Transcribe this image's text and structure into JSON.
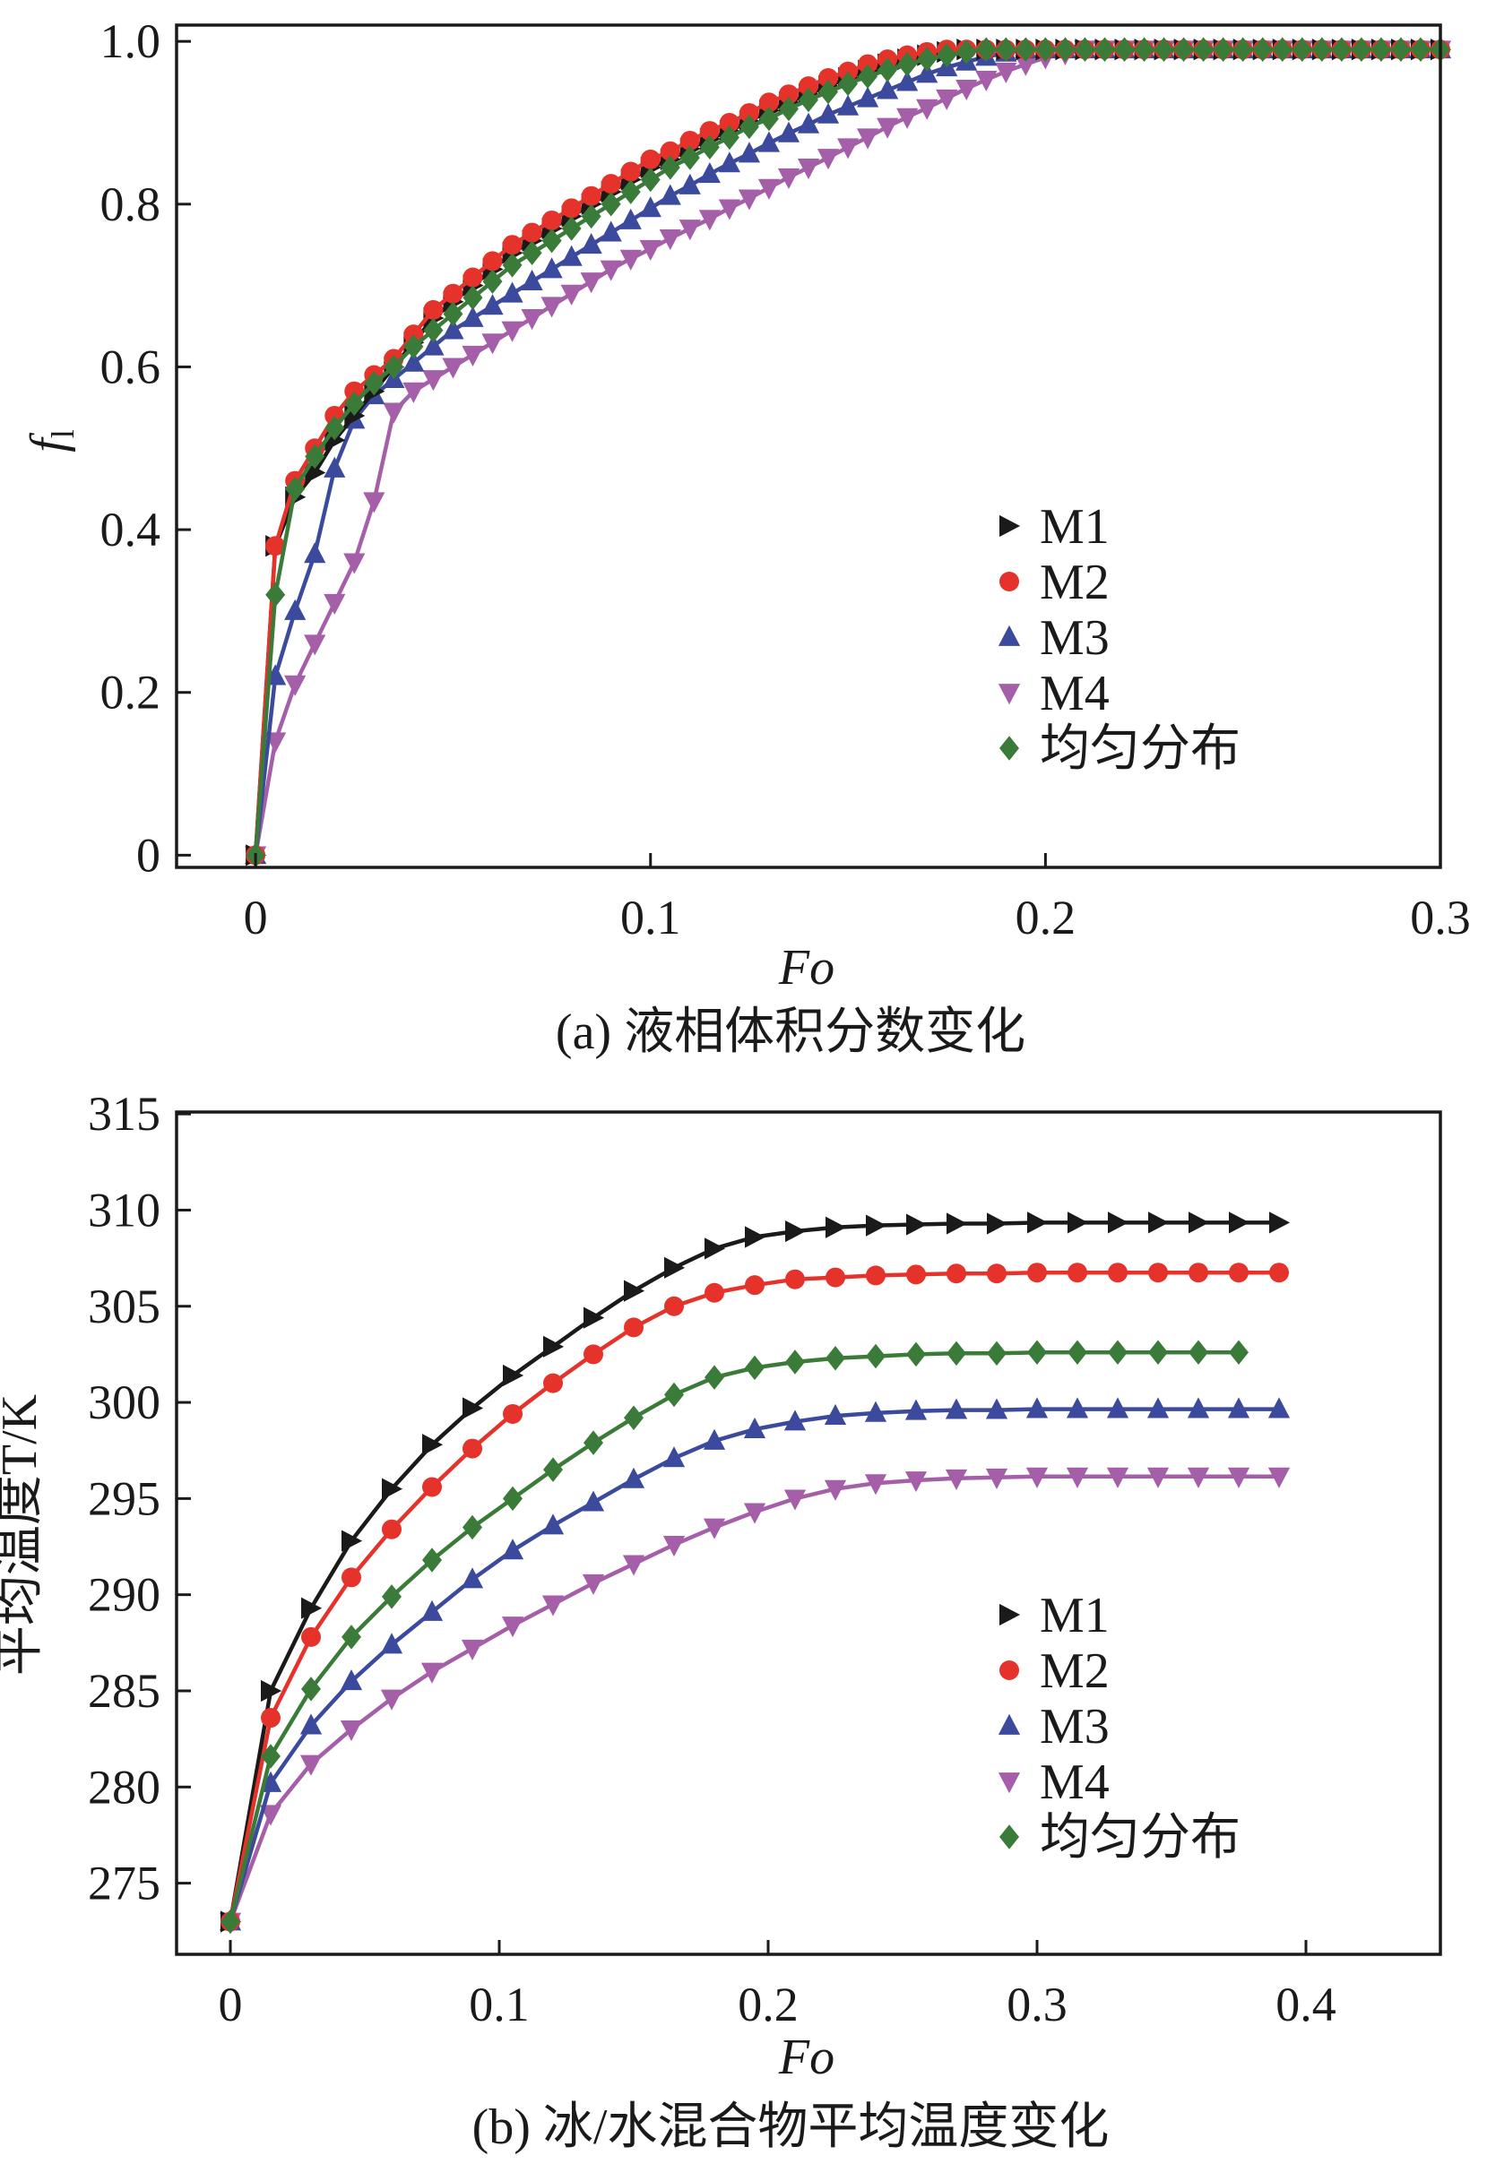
{
  "chart_data": [
    {
      "type": "line",
      "panel": "a",
      "caption": "(a) 液相体积分数变化",
      "xlabel": "Fo",
      "ylabel": "f",
      "ylabel_sub": "l",
      "xlim": [
        -0.02,
        0.3
      ],
      "ylim": [
        -0.015,
        1.02
      ],
      "xticks": [
        0,
        0.1,
        0.2,
        0.3
      ],
      "xtick_labels": [
        "0",
        "0.1",
        "0.2",
        "0.3"
      ],
      "yticks": [
        0,
        0.2,
        0.4,
        0.6,
        0.8,
        1.0
      ],
      "ytick_labels": [
        "0",
        "0.2",
        "0.4",
        "0.6",
        "0.8",
        "1.0"
      ],
      "legend_position": "center-right",
      "x_start": 0,
      "x_step": 0.005,
      "series": [
        {
          "name": "M4",
          "marker": "triangle-down",
          "color": "#a55ea8",
          "values": [
            0,
            0.14,
            0.21,
            0.26,
            0.31,
            0.36,
            0.435,
            0.545,
            0.57,
            0.585,
            0.6,
            0.615,
            0.63,
            0.645,
            0.66,
            0.675,
            0.69,
            0.705,
            0.72,
            0.733,
            0.745,
            0.758,
            0.77,
            0.782,
            0.795,
            0.807,
            0.82,
            0.833,
            0.845,
            0.857,
            0.87,
            0.882,
            0.895,
            0.907,
            0.918,
            0.93,
            0.942,
            0.953,
            0.963,
            0.972,
            0.98,
            0.985,
            0.99,
            0.99,
            0.99,
            0.99,
            0.99,
            0.99,
            0.99,
            0.99,
            0.99,
            0.99,
            0.99,
            0.99,
            0.99,
            0.99,
            0.99,
            0.99,
            0.99,
            0.99,
            0.99
          ]
        },
        {
          "name": "M3",
          "marker": "triangle-up",
          "color": "#3b4a9c",
          "values": [
            0,
            0.22,
            0.3,
            0.37,
            0.475,
            0.535,
            0.565,
            0.585,
            0.605,
            0.625,
            0.645,
            0.66,
            0.675,
            0.69,
            0.705,
            0.72,
            0.735,
            0.75,
            0.765,
            0.78,
            0.795,
            0.81,
            0.823,
            0.837,
            0.85,
            0.862,
            0.875,
            0.887,
            0.898,
            0.91,
            0.92,
            0.93,
            0.94,
            0.95,
            0.96,
            0.968,
            0.975,
            0.981,
            0.986,
            0.99,
            0.99,
            0.99,
            0.99,
            0.99,
            0.99,
            0.99,
            0.99,
            0.99,
            0.99,
            0.99,
            0.99,
            0.99,
            0.99,
            0.99,
            0.99,
            0.99,
            0.99,
            0.99,
            0.99,
            0.99,
            0.99
          ]
        },
        {
          "name": "M1",
          "marker": "triangle-right",
          "color": "#1a1a1a",
          "values": [
            0,
            0.38,
            0.44,
            0.47,
            0.51,
            0.54,
            0.57,
            0.6,
            0.63,
            0.66,
            0.68,
            0.7,
            0.72,
            0.74,
            0.755,
            0.77,
            0.785,
            0.8,
            0.815,
            0.83,
            0.845,
            0.855,
            0.868,
            0.88,
            0.89,
            0.902,
            0.915,
            0.925,
            0.935,
            0.945,
            0.955,
            0.964,
            0.972,
            0.978,
            0.983,
            0.987,
            0.99,
            0.99,
            0.99,
            0.99,
            0.99,
            0.99,
            0.99,
            0.99,
            0.99,
            0.99,
            0.99,
            0.99,
            0.99,
            0.99,
            0.99,
            0.99,
            0.99,
            0.99,
            0.99,
            0.99,
            0.99,
            0.99,
            0.99,
            0.99,
            0.99
          ]
        },
        {
          "name": "M2",
          "marker": "circle",
          "color": "#e5322b",
          "values": [
            0,
            0.38,
            0.46,
            0.5,
            0.54,
            0.57,
            0.59,
            0.61,
            0.64,
            0.67,
            0.69,
            0.71,
            0.73,
            0.75,
            0.765,
            0.78,
            0.795,
            0.81,
            0.825,
            0.84,
            0.855,
            0.865,
            0.878,
            0.89,
            0.9,
            0.912,
            0.925,
            0.935,
            0.945,
            0.955,
            0.963,
            0.972,
            0.978,
            0.983,
            0.987,
            0.99,
            0.99,
            0.99,
            0.99,
            0.99,
            0.99,
            0.99,
            0.99,
            0.99,
            0.99,
            0.99,
            0.99,
            0.99,
            0.99,
            0.99,
            0.99,
            0.99,
            0.99,
            0.99,
            0.99,
            0.99,
            0.99,
            0.99,
            0.99,
            0.99,
            0.99
          ]
        },
        {
          "name": "均匀分布",
          "marker": "diamond",
          "color": "#3b7b3a",
          "values": [
            0,
            0.32,
            0.45,
            0.49,
            0.525,
            0.555,
            0.58,
            0.6,
            0.625,
            0.645,
            0.665,
            0.685,
            0.705,
            0.725,
            0.74,
            0.755,
            0.77,
            0.785,
            0.8,
            0.815,
            0.83,
            0.845,
            0.857,
            0.87,
            0.882,
            0.895,
            0.905,
            0.917,
            0.928,
            0.938,
            0.948,
            0.957,
            0.965,
            0.972,
            0.978,
            0.983,
            0.987,
            0.99,
            0.99,
            0.99,
            0.99,
            0.99,
            0.99,
            0.99,
            0.99,
            0.99,
            0.99,
            0.99,
            0.99,
            0.99,
            0.99,
            0.99,
            0.99,
            0.99,
            0.99,
            0.99,
            0.99,
            0.99,
            0.99,
            0.99,
            0.99
          ]
        }
      ],
      "legend_order": [
        "M1",
        "M2",
        "M3",
        "M4",
        "均匀分布"
      ]
    },
    {
      "type": "line",
      "panel": "b",
      "caption": "(b) 冰/水混合物平均温度变化",
      "xlabel": "Fo",
      "ylabel": "平均温度T/K",
      "xlim": [
        -0.02,
        0.45
      ],
      "ylim": [
        271.3,
        315.1
      ],
      "xticks": [
        0,
        0.1,
        0.2,
        0.3,
        0.4
      ],
      "xtick_labels": [
        "0",
        "0.1",
        "0.2",
        "0.3",
        "0.4"
      ],
      "yticks": [
        275,
        280,
        285,
        290,
        295,
        300,
        305,
        310,
        315
      ],
      "ytick_labels": [
        "275",
        "280",
        "285",
        "290",
        "295",
        "300",
        "305",
        "310",
        "315"
      ],
      "legend_position": "lower-right",
      "x_start": 0,
      "x_step": 0.015,
      "series": [
        {
          "name": "M4",
          "marker": "triangle-down",
          "color": "#a55ea8",
          "values": [
            273,
            278.6,
            281.2,
            283.0,
            284.6,
            286.0,
            287.2,
            288.4,
            289.5,
            290.6,
            291.6,
            292.6,
            293.5,
            294.3,
            295.0,
            295.5,
            295.8,
            295.95,
            296.05,
            296.1,
            296.15,
            296.15,
            296.15,
            296.15,
            296.15,
            296.15,
            296.15
          ]
        },
        {
          "name": "M3",
          "marker": "triangle-up",
          "color": "#3b4a9c",
          "values": [
            273,
            280.2,
            283.2,
            285.5,
            287.4,
            289.1,
            290.8,
            292.3,
            293.6,
            294.8,
            296.0,
            297.1,
            298.0,
            298.6,
            299.0,
            299.3,
            299.45,
            299.55,
            299.6,
            299.6,
            299.65,
            299.65,
            299.65,
            299.65,
            299.65,
            299.65,
            299.65
          ]
        },
        {
          "name": "M1",
          "marker": "triangle-right",
          "color": "#1a1a1a",
          "values": [
            273,
            285.0,
            289.3,
            292.8,
            295.5,
            297.8,
            299.7,
            301.4,
            302.9,
            304.4,
            305.8,
            307.0,
            308.0,
            308.6,
            308.9,
            309.1,
            309.2,
            309.25,
            309.3,
            309.3,
            309.35,
            309.35,
            309.35,
            309.35,
            309.35,
            309.35,
            309.35
          ]
        },
        {
          "name": "M2",
          "marker": "circle",
          "color": "#e5322b",
          "values": [
            273,
            283.6,
            287.8,
            290.9,
            293.4,
            295.6,
            297.6,
            299.4,
            301.0,
            302.5,
            303.9,
            305.0,
            305.7,
            306.1,
            306.4,
            306.5,
            306.6,
            306.65,
            306.7,
            306.7,
            306.75,
            306.75,
            306.75,
            306.75,
            306.75,
            306.75,
            306.75
          ]
        },
        {
          "name": "均匀分布",
          "marker": "diamond",
          "color": "#3b7b3a",
          "values": [
            273,
            281.6,
            285.1,
            287.8,
            289.9,
            291.8,
            293.5,
            295.0,
            296.5,
            297.9,
            299.2,
            300.4,
            301.3,
            301.8,
            302.1,
            302.3,
            302.4,
            302.5,
            302.55,
            302.55,
            302.6,
            302.6,
            302.6,
            302.6,
            302.6,
            302.6
          ]
        }
      ],
      "legend_order": [
        "M1",
        "M2",
        "M3",
        "M4",
        "均匀分布"
      ]
    }
  ]
}
